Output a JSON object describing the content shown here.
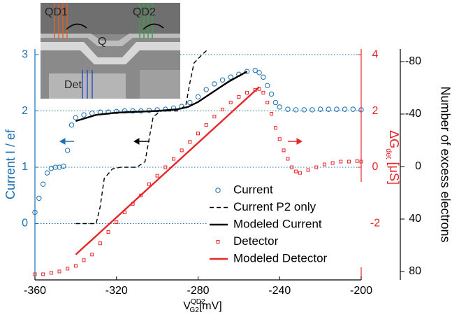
{
  "chart_data": {
    "type": "line",
    "x_label": {
      "main": "V",
      "sup": "QD2",
      "sub": "G2",
      "unit": "[mV]"
    },
    "y_label": "Current  I / ef",
    "y2_label": {
      "main": "ΔG",
      "sub": "det",
      "unit": "[μS]"
    },
    "y3_label": "Number of excess electrons",
    "inset_labels": [
      "QD1",
      "QD2",
      "Q",
      "Det"
    ],
    "xlim": [
      -360,
      -200
    ],
    "xticks": [
      -360,
      -320,
      -280,
      -240,
      -200
    ],
    "ylim": [
      -1,
      3.1
    ],
    "yticks": [
      0,
      1,
      2,
      3
    ],
    "y2lim": [
      -4,
      4.2
    ],
    "y2ticks": [
      -2,
      0,
      2,
      4
    ],
    "y3lim": [
      86.4,
      -89.6
    ],
    "y3ticks": [
      -80,
      -40,
      0,
      40,
      80
    ],
    "grid": true,
    "legend": "lower right",
    "series": [
      {
        "name": "Current",
        "color": "#1a6fb5",
        "style": "markers",
        "marker": "circle",
        "x": [
          -360,
          -358,
          -356,
          -354,
          -352,
          -350,
          -348,
          -346,
          -344,
          -342,
          -340,
          -336,
          -332,
          -328,
          -324,
          -320,
          -316,
          -312,
          -308,
          -304,
          -300,
          -296,
          -292,
          -288,
          -284,
          -280,
          -276,
          -272,
          -268,
          -264,
          -260,
          -256,
          -252,
          -250,
          -248,
          -246,
          -244,
          -242,
          -240,
          -236,
          -232,
          -228,
          -224,
          -220,
          -216,
          -212,
          -208,
          -204,
          -200
        ],
        "values": [
          0.2,
          0.45,
          0.7,
          0.9,
          0.98,
          1.0,
          1.0,
          1.02,
          1.3,
          1.75,
          1.88,
          1.93,
          1.96,
          1.98,
          1.98,
          1.99,
          2.0,
          2.0,
          2.0,
          2.01,
          2.02,
          2.03,
          2.05,
          2.08,
          2.15,
          2.25,
          2.38,
          2.48,
          2.55,
          2.6,
          2.65,
          2.7,
          2.72,
          2.68,
          2.6,
          2.45,
          2.3,
          2.15,
          2.07,
          2.03,
          2.02,
          2.02,
          2.02,
          2.03,
          2.03,
          2.03,
          2.03,
          2.03,
          2.02
        ]
      },
      {
        "name": "Current P2 only",
        "color": "#000000",
        "style": "dashed",
        "x": [
          -340,
          -330,
          -328,
          -326,
          -322,
          -318,
          -310,
          -306,
          -304,
          -302,
          -298,
          -290,
          -286,
          -284,
          -282,
          -278,
          -275
        ],
        "values": [
          0,
          0,
          0.3,
          0.8,
          0.97,
          1.0,
          1.0,
          1.1,
          1.5,
          1.9,
          2.0,
          2.0,
          2.1,
          2.5,
          2.85,
          3.0,
          3.1
        ]
      },
      {
        "name": "Modeled Current",
        "color": "#000000",
        "style": "solid",
        "x": [
          -340,
          -330,
          -320,
          -300,
          -290,
          -285,
          -280,
          -275,
          -270,
          -265,
          -260,
          -256
        ],
        "values": [
          1.82,
          1.93,
          1.97,
          2.0,
          2.03,
          2.07,
          2.16,
          2.28,
          2.4,
          2.52,
          2.62,
          2.7
        ]
      },
      {
        "name": "Detector",
        "color": "#e8262a",
        "style": "markers",
        "marker": "square",
        "axis": "y2",
        "x": [
          -360,
          -356,
          -352,
          -348,
          -344,
          -340,
          -336,
          -332,
          -328,
          -324,
          -320,
          -316,
          -312,
          -308,
          -304,
          -300,
          -296,
          -292,
          -288,
          -284,
          -280,
          -276,
          -272,
          -268,
          -264,
          -260,
          -256,
          -252,
          -250,
          -248,
          -246,
          -244,
          -242,
          -240,
          -238,
          -236,
          -234,
          -232,
          -230,
          -226,
          -222,
          -218,
          -214,
          -210,
          -206,
          -202,
          -200
        ],
        "values": [
          -3.8,
          -3.8,
          -3.75,
          -3.7,
          -3.6,
          -3.5,
          -3.3,
          -3.1,
          -2.7,
          -2.3,
          -1.95,
          -1.6,
          -1.3,
          -1.0,
          -0.6,
          -0.3,
          0.0,
          0.3,
          0.6,
          0.9,
          1.2,
          1.5,
          1.8,
          2.05,
          2.3,
          2.5,
          2.65,
          2.75,
          2.78,
          2.65,
          2.3,
          1.9,
          1.4,
          1.0,
          0.6,
          0.3,
          0.0,
          -0.15,
          -0.2,
          -0.1,
          0.0,
          0.1,
          0.15,
          0.2,
          0.2,
          0.22,
          0.2
        ]
      },
      {
        "name": "Modeled Detector",
        "color": "#e8262a",
        "style": "solid",
        "axis": "y2",
        "x": [
          -340,
          -250
        ],
        "values": [
          -3.1,
          2.85
        ]
      }
    ]
  }
}
